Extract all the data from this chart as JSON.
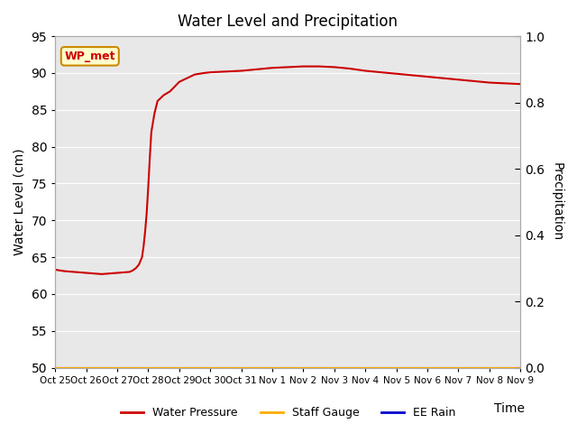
{
  "title": "Water Level and Precipitation",
  "ylabel_left": "Water Level (cm)",
  "ylabel_right": "Precipitation",
  "xlabel": "Time",
  "ylim_left": [
    50,
    95
  ],
  "ylim_right": [
    0.0,
    1.0
  ],
  "yticks_left": [
    50,
    55,
    60,
    65,
    70,
    75,
    80,
    85,
    90,
    95
  ],
  "yticks_right": [
    0.0,
    0.2,
    0.4,
    0.6,
    0.8,
    1.0
  ],
  "xtick_labels": [
    "Oct 25",
    "Oct 26",
    "Oct 27",
    "Oct 28",
    "Oct 29",
    "Oct 30",
    "Oct 31",
    "Nov 1",
    "Nov 2",
    "Nov 3",
    "Nov 4",
    "Nov 5",
    "Nov 6",
    "Nov 7",
    "Nov 8",
    "Nov 9"
  ],
  "background_color": "#e8e8e8",
  "line_color_wp": "#cc0000",
  "line_color_sg": "#ffaa00",
  "line_color_rain": "#0000cc",
  "annotation_text": "WP_met",
  "annotation_bg": "#ffffcc",
  "annotation_border": "#cc8800",
  "annotation_text_color": "#cc0000",
  "legend_labels": [
    "Water Pressure",
    "Staff Gauge",
    "EE Rain"
  ],
  "water_pressure_x": [
    0,
    0.3,
    0.6,
    0.9,
    1.2,
    1.5,
    1.8,
    2.1,
    2.4,
    2.5,
    2.6,
    2.7,
    2.8,
    2.85,
    2.9,
    2.95,
    3.0,
    3.05,
    3.1,
    3.2,
    3.3,
    3.5,
    3.7,
    4.0,
    4.3,
    4.5,
    4.8,
    5.0,
    5.5,
    6.0,
    6.5,
    7.0,
    7.5,
    8.0,
    8.5,
    9.0,
    9.5,
    10.0,
    10.5,
    11.0,
    11.5,
    12.0,
    12.5,
    13.0,
    13.5,
    14.0,
    14.5,
    15.0
  ],
  "water_pressure_y": [
    63.3,
    63.1,
    63.0,
    62.9,
    62.8,
    62.7,
    62.8,
    62.9,
    63.0,
    63.2,
    63.5,
    64.0,
    65.0,
    66.5,
    68.5,
    71.0,
    74.5,
    78.5,
    82.0,
    84.5,
    86.2,
    87.0,
    87.5,
    88.8,
    89.4,
    89.8,
    90.0,
    90.1,
    90.2,
    90.3,
    90.5,
    90.7,
    90.8,
    90.9,
    90.9,
    90.8,
    90.6,
    90.3,
    90.1,
    89.9,
    89.7,
    89.5,
    89.3,
    89.1,
    88.9,
    88.7,
    88.6,
    88.5
  ]
}
